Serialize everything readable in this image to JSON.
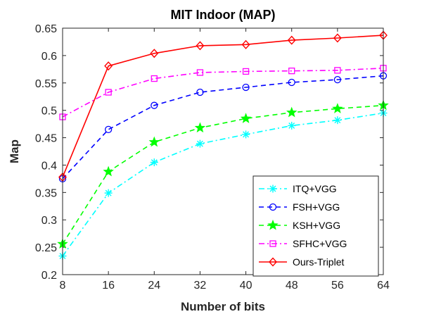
{
  "chart_data": {
    "type": "line",
    "title": "MIT Indoor (MAP)",
    "xlabel": "Number of bits",
    "ylabel": "Map",
    "categories": [
      "8",
      "16",
      "24",
      "32",
      "40",
      "48",
      "56",
      "64"
    ],
    "x": [
      8,
      16,
      24,
      32,
      40,
      48,
      56,
      64
    ],
    "xlim": [
      8,
      64
    ],
    "ylim": [
      0.2,
      0.65
    ],
    "yticks": [
      0.2,
      0.25,
      0.3,
      0.35,
      0.4,
      0.45,
      0.5,
      0.55,
      0.6,
      0.65
    ],
    "ytick_labels": [
      "0.2",
      "0.25",
      "0.3",
      "0.35",
      "0.4",
      "0.45",
      "0.5",
      "0.55",
      "0.6",
      "0.65"
    ],
    "grid": false,
    "legend_position": "bottom-right",
    "series": [
      {
        "name": "ITQ+VGG",
        "color": "#00ffff",
        "dash": "dashdot",
        "marker": "asterisk",
        "values": [
          0.234,
          0.349,
          0.405,
          0.439,
          0.456,
          0.472,
          0.482,
          0.495
        ]
      },
      {
        "name": "FSH+VGG",
        "color": "#0000ff",
        "dash": "dashed",
        "marker": "circle",
        "values": [
          0.375,
          0.465,
          0.509,
          0.533,
          0.542,
          0.551,
          0.556,
          0.563
        ]
      },
      {
        "name": "KSH+VGG",
        "color": "#00ff00",
        "dash": "dashed",
        "marker": "star",
        "values": [
          0.256,
          0.388,
          0.442,
          0.468,
          0.485,
          0.496,
          0.503,
          0.509
        ]
      },
      {
        "name": "SFHC+VGG",
        "color": "#ff00ff",
        "dash": "dashdot",
        "marker": "square",
        "values": [
          0.488,
          0.533,
          0.558,
          0.569,
          0.571,
          0.572,
          0.573,
          0.577
        ]
      },
      {
        "name": "Ours-Triplet",
        "color": "#ff0000",
        "dash": "solid",
        "marker": "diamond",
        "values": [
          0.378,
          0.581,
          0.604,
          0.618,
          0.62,
          0.628,
          0.632,
          0.637
        ]
      }
    ]
  }
}
